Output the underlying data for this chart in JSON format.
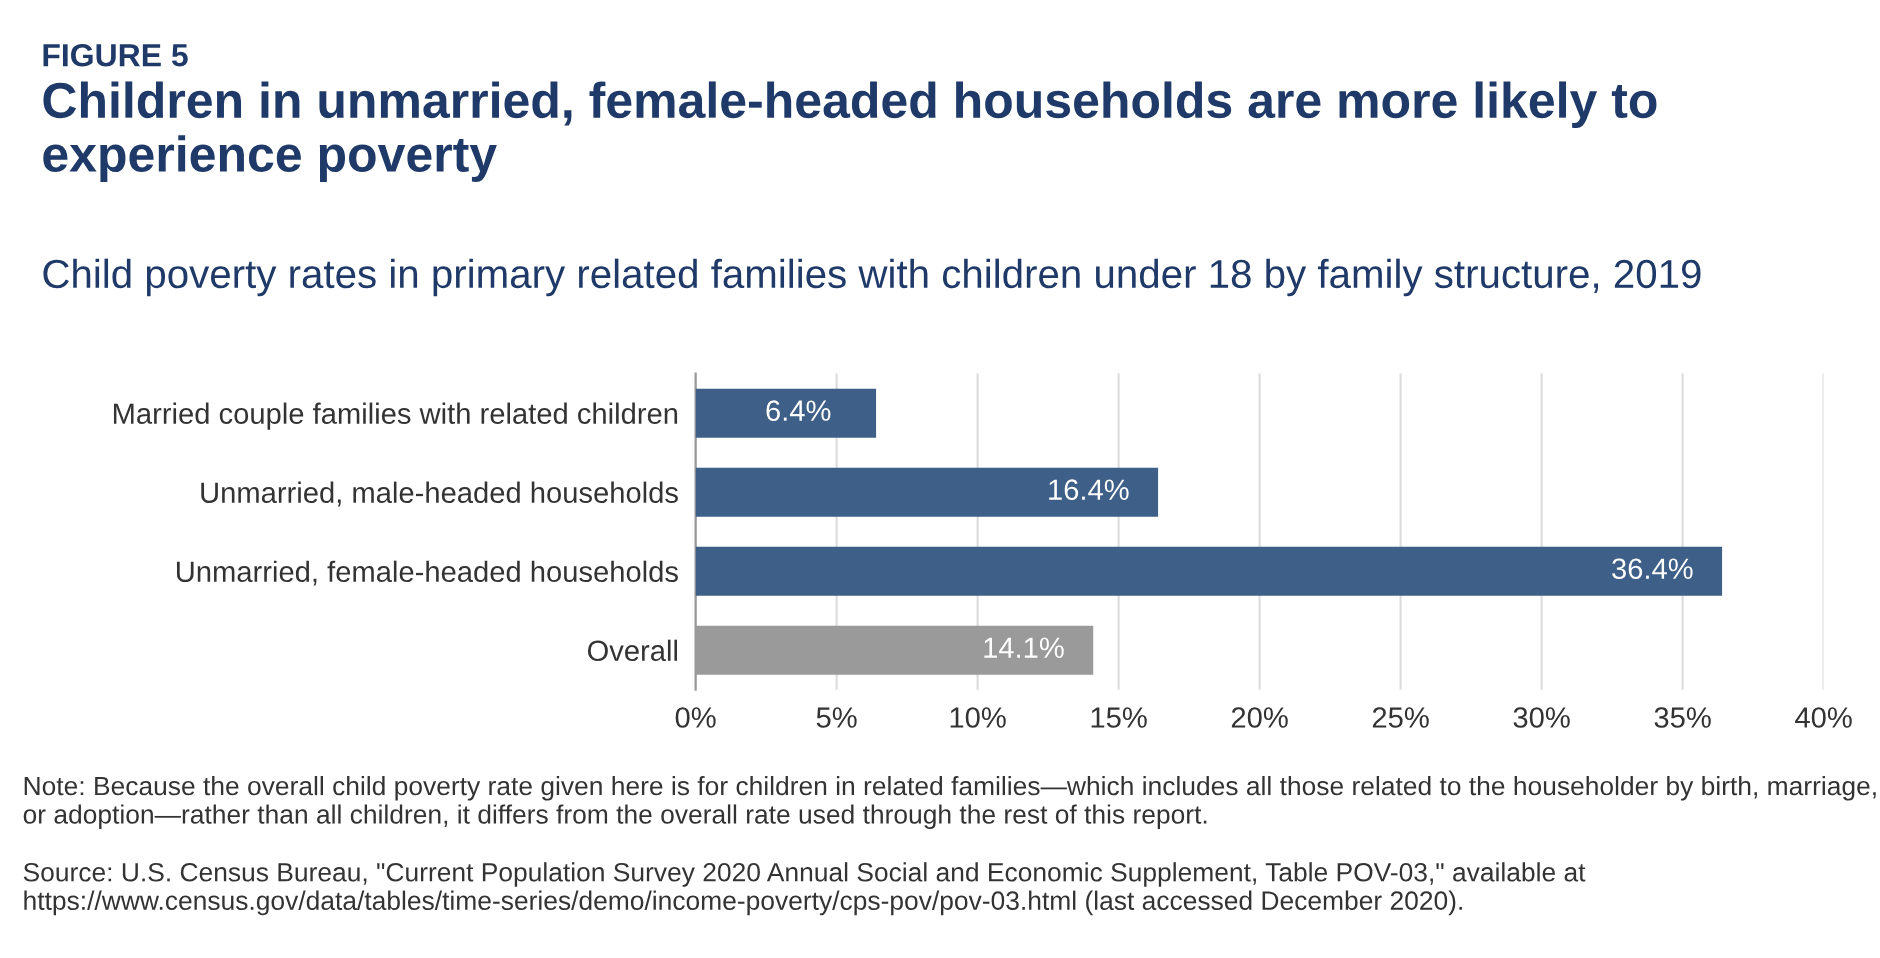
{
  "chart_data": {
    "type": "bar",
    "orientation": "horizontal",
    "title": "Children in unmarried, female-headed households are more likely to experience poverty",
    "subtitle": "Child poverty rates in primary related families with children under 18 by family structure, 2019",
    "categories": [
      "Married couple families with related children",
      "Unmarried, male-headed households",
      "Unmarried, female-headed households",
      "Overall"
    ],
    "values": [
      6.4,
      16.4,
      36.4,
      14.1
    ],
    "colors": [
      "#3e5f87",
      "#3e5f87",
      "#3e5f87",
      "#9a9a9a"
    ],
    "value_labels": [
      "6.4%",
      "16.4%",
      "36.4%",
      "14.1%"
    ],
    "xlim": [
      0,
      40
    ],
    "xticks": [
      {
        "value": 0,
        "label": "0%"
      },
      {
        "value": 5,
        "label": "5%"
      },
      {
        "value": 10,
        "label": "10%"
      },
      {
        "value": 15,
        "label": "15%"
      },
      {
        "value": 20,
        "label": "20%"
      },
      {
        "value": 25,
        "label": "25%"
      },
      {
        "value": 30,
        "label": "30%"
      },
      {
        "value": 35,
        "label": "35%"
      },
      {
        "value": 40,
        "label": "40%"
      }
    ],
    "grid": "x",
    "annotations": [
      "FIGURE 5",
      "Note: Because the overall child poverty rate given here is for children in related families—which includes all those related to the householder by birth, marriage, or adoption—rather than all children, it differs from the overall rate used through the rest of this report.",
      "Source: U.S. Census Bureau, \"Current Population Survey 2020 Annual Social and Economic Supplement, Table POV-03,\" available at https://www.census.gov/data/tables/time-series/demo/income-poverty/cps-pov/pov-03.html (last accessed December 2020)."
    ]
  }
}
